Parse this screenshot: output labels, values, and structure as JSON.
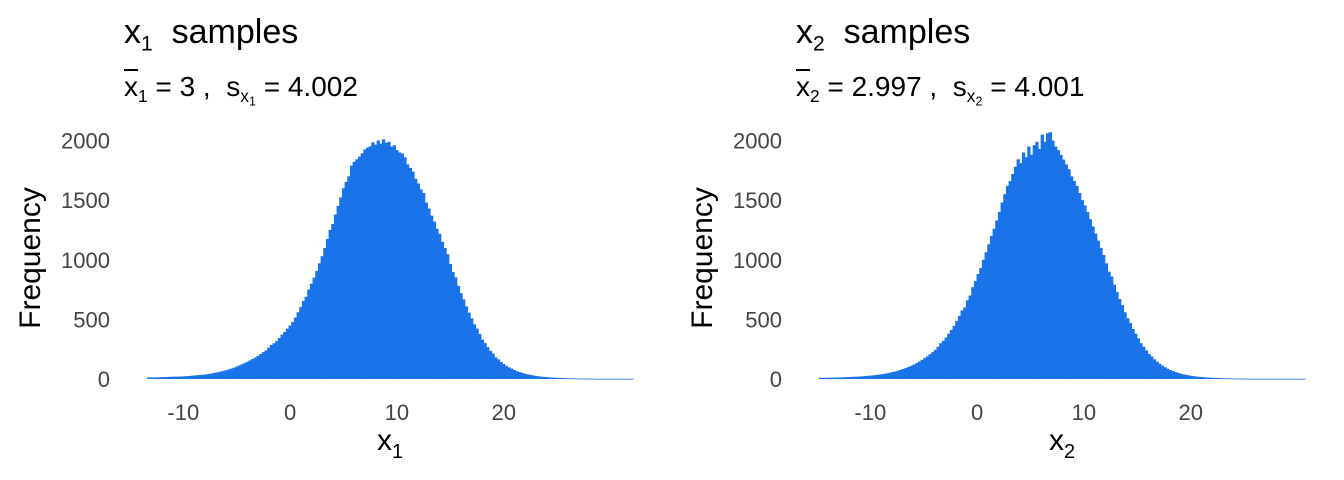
{
  "chart_data": [
    {
      "type": "bar",
      "name": "x1",
      "title": {
        "var": "x",
        "sub": "1",
        "text": "samples"
      },
      "stats": {
        "mean_var": "x",
        "mean_sub": "1",
        "mean_value": "3",
        "sd_var": "s",
        "sd_sub_var": "x",
        "sd_sub_sub": "1",
        "sd_value": "4.002"
      },
      "xlabel": {
        "var": "x",
        "sub": "1"
      },
      "ylabel": "Frequency",
      "xlim": [
        -14,
        21
      ],
      "ylim": [
        0,
        2080
      ],
      "xticks": [
        -10,
        0,
        10,
        20
      ],
      "yticks": [
        0,
        500,
        1000,
        1500,
        2000
      ],
      "grid": false,
      "color": "#1a73e8",
      "bins": {
        "start": -13.4,
        "width": 0.25
      },
      "values": [
        13,
        13,
        13,
        14,
        14,
        15,
        16,
        17,
        18,
        19,
        20,
        20,
        21,
        22,
        23,
        25,
        27,
        29,
        31,
        33,
        35,
        37,
        40,
        44,
        48,
        52,
        57,
        62,
        68,
        74,
        80,
        87,
        95,
        104,
        113,
        123,
        133,
        144,
        156,
        168,
        181,
        194,
        210,
        225,
        240,
        262,
        285,
        300,
        318,
        344,
        372,
        394,
        422,
        448,
        478,
        515,
        560,
        604,
        655,
        690,
        750,
        799,
        850,
        906,
        970,
        1030,
        1098,
        1174,
        1251,
        1300,
        1380,
        1452,
        1523,
        1600,
        1652,
        1700,
        1790,
        1822,
        1843,
        1865,
        1893,
        1925,
        1940,
        1952,
        1985,
        1965,
        2000,
        1975,
        2010,
        1980,
        1990,
        1950,
        1960,
        1920,
        1900,
        1892,
        1860,
        1800,
        1770,
        1740,
        1680,
        1640,
        1590,
        1560,
        1480,
        1430,
        1370,
        1320,
        1260,
        1217,
        1150,
        1099,
        1046,
        965,
        897,
        852,
        781,
        720,
        668,
        609,
        557,
        509,
        459,
        423,
        378,
        330,
        301,
        267,
        235,
        213,
        182,
        165,
        142,
        125,
        110,
        97,
        87,
        75,
        65,
        58,
        50,
        44,
        38,
        34,
        30,
        26,
        23,
        20,
        18,
        16,
        14,
        12,
        11,
        10,
        9,
        8,
        7,
        6,
        6,
        5,
        5,
        4,
        4,
        4,
        3,
        3,
        3,
        3,
        2,
        2,
        2,
        2,
        2,
        2,
        2,
        2,
        2,
        2,
        2,
        2,
        2,
        2
      ]
    },
    {
      "type": "bar",
      "name": "x2",
      "title": {
        "var": "x",
        "sub": "2",
        "text": "samples"
      },
      "stats": {
        "mean_var": "x",
        "mean_sub": "2",
        "mean_value": "2.997",
        "sd_var": "s",
        "sd_sub_var": "x",
        "sd_sub_sub": "2",
        "sd_value": "4.001"
      },
      "xlabel": {
        "var": "x",
        "sub": "2"
      },
      "ylabel": "Frequency",
      "xlim": [
        -15.5,
        21
      ],
      "ylim": [
        0,
        2080
      ],
      "xticks": [
        -10,
        0,
        10,
        20
      ],
      "yticks": [
        0,
        500,
        1000,
        1500,
        2000
      ],
      "grid": false,
      "color": "#1a73e8",
      "bins": {
        "start": -14.8,
        "width": 0.25
      },
      "values": [
        10,
        10,
        10,
        11,
        11,
        12,
        12,
        13,
        14,
        15,
        16,
        17,
        18,
        19,
        20,
        21,
        23,
        25,
        27,
        29,
        31,
        34,
        37,
        40,
        44,
        48,
        53,
        58,
        63,
        70,
        77,
        84,
        92,
        101,
        111,
        121,
        133,
        146,
        160,
        175,
        190,
        208,
        225,
        245,
        270,
        300,
        320,
        348,
        380,
        412,
        446,
        486,
        528,
        575,
        600,
        660,
        700,
        770,
        820,
        880,
        930,
        1000,
        1063,
        1130,
        1200,
        1260,
        1330,
        1402,
        1480,
        1550,
        1620,
        1660,
        1720,
        1780,
        1843,
        1810,
        1900,
        1860,
        1950,
        1880,
        1960,
        1990,
        1930,
        2050,
        1990,
        2060,
        2070,
        2000,
        1950,
        1920,
        1880,
        1840,
        1800,
        1760,
        1700,
        1660,
        1620,
        1560,
        1500,
        1456,
        1400,
        1340,
        1280,
        1220,
        1160,
        1100,
        1040,
        970,
        900,
        860,
        790,
        730,
        670,
        620,
        560,
        510,
        470,
        420,
        380,
        340,
        300,
        270,
        240,
        210,
        190,
        165,
        145,
        128,
        112,
        98,
        86,
        75,
        66,
        58,
        50,
        44,
        38,
        34,
        30,
        26,
        23,
        20,
        18,
        16,
        14,
        12,
        11,
        10,
        9,
        8,
        7,
        6,
        6,
        5,
        5,
        4,
        4,
        3,
        3,
        3,
        3,
        2,
        2,
        2,
        2,
        2,
        2,
        2,
        2,
        2,
        2,
        2,
        2,
        2,
        2,
        2,
        2,
        2,
        2,
        2,
        2,
        2
      ]
    }
  ]
}
